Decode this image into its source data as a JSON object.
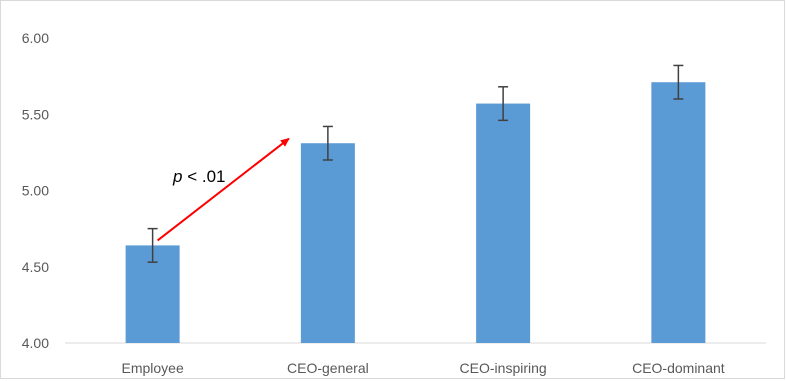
{
  "chart_data": {
    "type": "bar",
    "categories": [
      "Employee",
      "CEO-general",
      "CEO-inspiring",
      "CEO-dominant"
    ],
    "values": [
      4.64,
      5.31,
      5.57,
      5.71
    ],
    "errors": [
      0.11,
      0.11,
      0.11,
      0.11
    ],
    "ylim": [
      4.0,
      6.0
    ],
    "yticks": [
      "4.00",
      "4.50",
      "5.00",
      "5.50",
      "6.00"
    ],
    "grid": false,
    "legend": "none",
    "bar_color": "#5b9bd5",
    "error_color": "#404040",
    "axis_color": "#d9d9d9",
    "annotation": {
      "italic_part": "p",
      "rest": " < .01",
      "arrow_from": "Employee",
      "arrow_to": "CEO-general",
      "arrow_color": "#ff0000"
    }
  }
}
